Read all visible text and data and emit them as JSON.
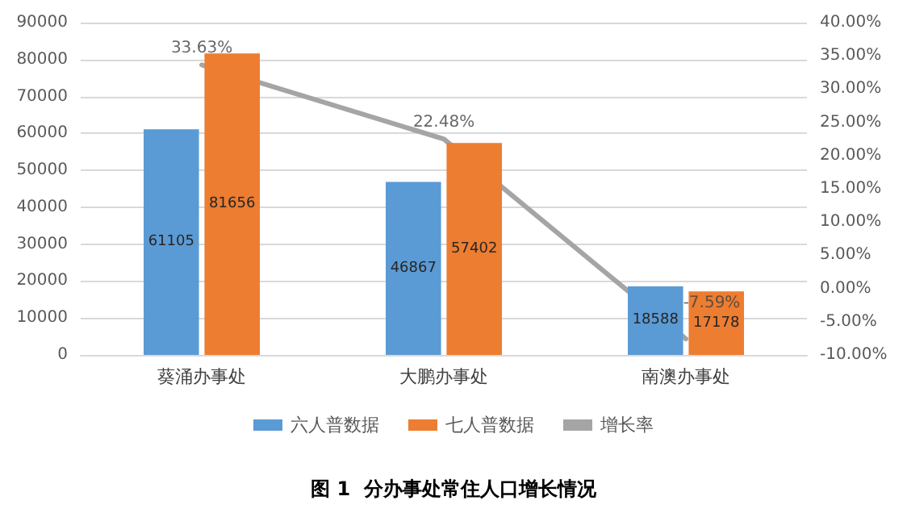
{
  "chart_data": {
    "type": "bar",
    "title": "图 1  分办事处常住人口增长情况",
    "categories": [
      "葵涌办事处",
      "大鹏办事处",
      "南澳办事处"
    ],
    "series": [
      {
        "name": "六人普数据",
        "color": "#5b9bd5",
        "values": [
          61105,
          46867,
          18588
        ],
        "value_labels": [
          "61105",
          "46867",
          "18588"
        ]
      },
      {
        "name": "七人普数据",
        "color": "#ed7d31",
        "values": [
          81656,
          57402,
          17178
        ],
        "value_labels": [
          "81656",
          "57402",
          "17178"
        ]
      },
      {
        "name": "增长率",
        "type": "line",
        "axis": "y2",
        "color": "#a5a5a5",
        "values": [
          33.63,
          22.48,
          -7.59
        ],
        "value_labels": [
          "33.63%",
          "22.48%",
          "-7.59%"
        ],
        "marker": "none"
      }
    ],
    "ylim": [
      0,
      90000
    ],
    "yticks": [
      0,
      10000,
      20000,
      30000,
      40000,
      50000,
      60000,
      70000,
      80000,
      90000
    ],
    "y2lim": [
      -10,
      40
    ],
    "y2ticks": [
      {
        "value": -10,
        "label": "-10.00%"
      },
      {
        "value": -5,
        "label": "-5.00%"
      },
      {
        "value": 0,
        "label": "0.00%"
      },
      {
        "value": 5,
        "label": "5.00%"
      },
      {
        "value": 10,
        "label": "10.00%"
      },
      {
        "value": 15,
        "label": "15.00%"
      },
      {
        "value": 20,
        "label": "20.00%"
      },
      {
        "value": 25,
        "label": "25.00%"
      },
      {
        "value": 30,
        "label": "30.00%"
      },
      {
        "value": 35,
        "label": "35.00%"
      },
      {
        "value": 40,
        "label": "40.00%"
      }
    ],
    "grid": "y",
    "legend": "bottom"
  }
}
